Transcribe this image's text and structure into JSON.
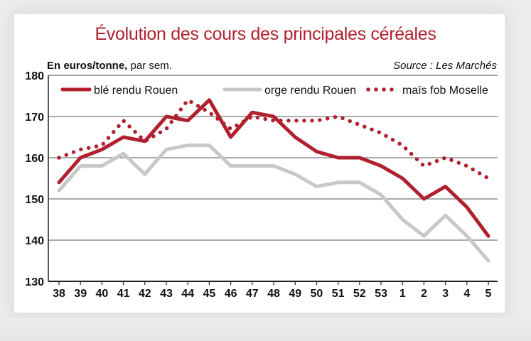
{
  "chart_data": {
    "type": "line",
    "title": "Évolution des cours des principales céréales",
    "unit_bold": "En euros/tonne,",
    "unit_rest": " par sem.",
    "source": "Source : Les Marchés",
    "categories": [
      "38",
      "39",
      "40",
      "41",
      "42",
      "43",
      "44",
      "45",
      "46",
      "47",
      "48",
      "49",
      "50",
      "51",
      "52",
      "53",
      "1",
      "2",
      "3",
      "4",
      "5"
    ],
    "ylim": [
      130,
      180
    ],
    "yticks": [
      130,
      140,
      150,
      160,
      170,
      180
    ],
    "grid": true,
    "legend_position": "top",
    "series": [
      {
        "name": "blé rendu Rouen",
        "style": "solid",
        "color": "#b0202e",
        "values": [
          154,
          160,
          162,
          165,
          164,
          170,
          169,
          174,
          165,
          171,
          170,
          165,
          161.5,
          160,
          160,
          158,
          155,
          150,
          153,
          148,
          141
        ]
      },
      {
        "name": "orge rendu Rouen",
        "style": "solid",
        "color": "#c8c8c8",
        "values": [
          152,
          158,
          158,
          161,
          156,
          162,
          163,
          163,
          158,
          158,
          158,
          156,
          153,
          154,
          154,
          151,
          145,
          141,
          146,
          141,
          135
        ]
      },
      {
        "name": "maïs fob Moselle",
        "style": "dotted",
        "color": "#b0202e",
        "values": [
          160,
          162,
          163,
          169,
          164,
          167,
          174,
          171,
          167,
          170,
          169,
          169,
          169,
          170,
          168,
          166,
          163,
          158,
          160,
          158,
          155
        ]
      }
    ]
  }
}
